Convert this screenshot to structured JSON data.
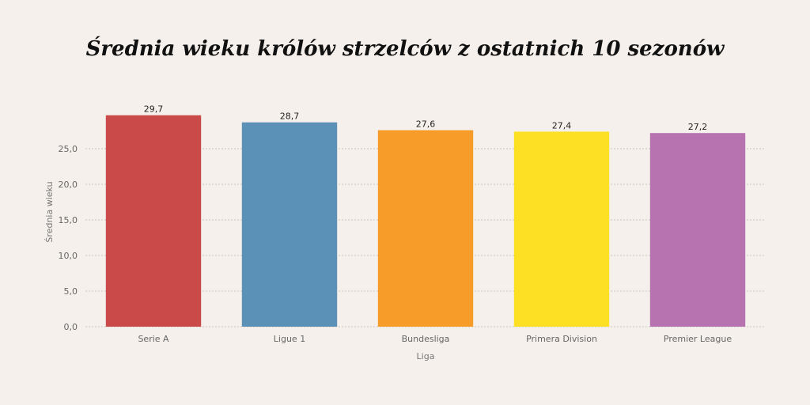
{
  "chart_data": {
    "type": "bar",
    "title": "Średnia wieku królów strzelców z ostatnich 10 sezonów",
    "xlabel": "Liga",
    "ylabel": "Średnia wieku",
    "categories": [
      "Serie A",
      "Ligue 1",
      "Bundesliga",
      "Primera Division",
      "Premier League"
    ],
    "values": [
      29.7,
      28.7,
      27.6,
      27.4,
      27.2
    ],
    "value_labels": [
      "29,7",
      "28,7",
      "27,6",
      "27,4",
      "27,2"
    ],
    "colors": [
      "#c94a48",
      "#5b90b7",
      "#f79b29",
      "#fde023",
      "#b673b0"
    ],
    "yticks": [
      0,
      5,
      10,
      15,
      20,
      25
    ],
    "ytick_labels": [
      "0,0",
      "5,0",
      "10,0",
      "15,0",
      "20,0",
      "25,0"
    ],
    "ylim": [
      0,
      30
    ],
    "grid": true,
    "legend": false
  }
}
